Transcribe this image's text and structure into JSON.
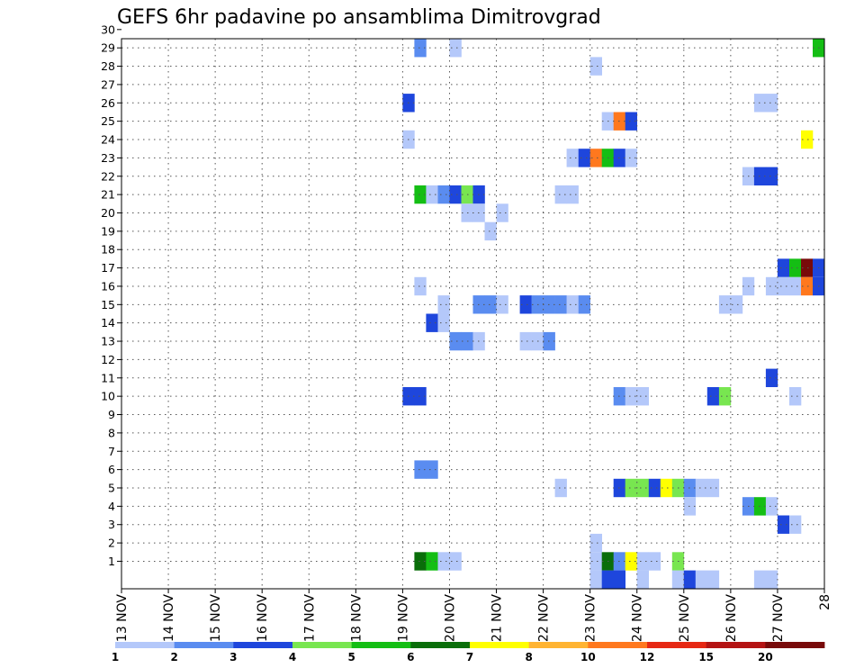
{
  "chart_data": {
    "type": "heatmap",
    "title": "GEFS 6hr padavine po ansamblima Dimitrovgrad",
    "y_ticks": [
      1,
      2,
      3,
      4,
      5,
      6,
      7,
      8,
      9,
      10,
      11,
      12,
      13,
      14,
      15,
      16,
      17,
      18,
      19,
      20,
      21,
      22,
      23,
      24,
      25,
      26,
      27,
      28,
      29,
      30
    ],
    "ylim": [
      0,
      30
    ],
    "x_ticks": [
      "13 NOV",
      "14 NOV",
      "15 NOV",
      "16 NOV",
      "17 NOV",
      "18 NOV",
      "19 NOV",
      "20 NOV",
      "21 NOV",
      "22 NOV",
      "23 NOV",
      "24 NOV",
      "25 NOV",
      "26 NOV",
      "27 NOV",
      "28"
    ],
    "xlim_days": [
      0,
      15
    ],
    "grid": true,
    "colorbar": {
      "labels": [
        "1",
        "2",
        "3",
        "4",
        "5",
        "6",
        "7",
        "8",
        "10",
        "12",
        "15",
        "20"
      ],
      "colors": [
        "#b4c8fa",
        "#5a8cf0",
        "#1e46dc",
        "#78e650",
        "#14be14",
        "#0a6e0a",
        "#ffff00",
        "#ffb432",
        "#ff781e",
        "#e62814",
        "#b41414",
        "#780a0a"
      ]
    },
    "cells": [
      {
        "member": 29,
        "day": 6.25,
        "level": 2
      },
      {
        "member": 29,
        "day": 7.0,
        "level": 1
      },
      {
        "member": 29,
        "day": 14.75,
        "level": 5
      },
      {
        "member": 28,
        "day": 10.0,
        "level": 1
      },
      {
        "member": 26,
        "day": 6.0,
        "level": 3
      },
      {
        "member": 26,
        "day": 13.5,
        "level": 1
      },
      {
        "member": 26,
        "day": 13.75,
        "level": 1
      },
      {
        "member": 25,
        "day": 10.25,
        "level": 1
      },
      {
        "member": 25,
        "day": 10.5,
        "level": 9
      },
      {
        "member": 25,
        "day": 10.75,
        "level": 3
      },
      {
        "member": 24,
        "day": 6.0,
        "level": 1
      },
      {
        "member": 24,
        "day": 14.5,
        "level": 7
      },
      {
        "member": 23,
        "day": 9.5,
        "level": 1
      },
      {
        "member": 23,
        "day": 9.75,
        "level": 3
      },
      {
        "member": 23,
        "day": 10.0,
        "level": 9
      },
      {
        "member": 23,
        "day": 10.25,
        "level": 5
      },
      {
        "member": 23,
        "day": 10.5,
        "level": 3
      },
      {
        "member": 23,
        "day": 10.75,
        "level": 1
      },
      {
        "member": 22,
        "day": 13.25,
        "level": 1
      },
      {
        "member": 22,
        "day": 13.5,
        "level": 3
      },
      {
        "member": 22,
        "day": 13.75,
        "level": 3
      },
      {
        "member": 21,
        "day": 6.25,
        "level": 5
      },
      {
        "member": 21,
        "day": 6.5,
        "level": 1
      },
      {
        "member": 21,
        "day": 6.75,
        "level": 2
      },
      {
        "member": 21,
        "day": 7.0,
        "level": 3
      },
      {
        "member": 21,
        "day": 7.25,
        "level": 4
      },
      {
        "member": 21,
        "day": 7.5,
        "level": 3
      },
      {
        "member": 21,
        "day": 9.25,
        "level": 1
      },
      {
        "member": 21,
        "day": 9.5,
        "level": 1
      },
      {
        "member": 20,
        "day": 7.25,
        "level": 1
      },
      {
        "member": 20,
        "day": 7.5,
        "level": 1
      },
      {
        "member": 20,
        "day": 8.0,
        "level": 1
      },
      {
        "member": 19,
        "day": 7.75,
        "level": 1
      },
      {
        "member": 17,
        "day": 14.0,
        "level": 3
      },
      {
        "member": 17,
        "day": 14.25,
        "level": 5
      },
      {
        "member": 17,
        "day": 14.5,
        "level": 12
      },
      {
        "member": 17,
        "day": 14.75,
        "level": 3
      },
      {
        "member": 16,
        "day": 6.25,
        "level": 1
      },
      {
        "member": 16,
        "day": 13.25,
        "level": 1
      },
      {
        "member": 16,
        "day": 13.75,
        "level": 1
      },
      {
        "member": 16,
        "day": 14.0,
        "level": 1
      },
      {
        "member": 16,
        "day": 14.25,
        "level": 1
      },
      {
        "member": 16,
        "day": 14.5,
        "level": 9
      },
      {
        "member": 16,
        "day": 14.75,
        "level": 3
      },
      {
        "member": 15,
        "day": 6.75,
        "level": 1
      },
      {
        "member": 15,
        "day": 7.5,
        "level": 2
      },
      {
        "member": 15,
        "day": 7.75,
        "level": 2
      },
      {
        "member": 15,
        "day": 8.0,
        "level": 1
      },
      {
        "member": 15,
        "day": 8.5,
        "level": 3
      },
      {
        "member": 15,
        "day": 8.75,
        "level": 2
      },
      {
        "member": 15,
        "day": 9.0,
        "level": 2
      },
      {
        "member": 15,
        "day": 9.25,
        "level": 2
      },
      {
        "member": 15,
        "day": 9.5,
        "level": 1
      },
      {
        "member": 15,
        "day": 9.75,
        "level": 2
      },
      {
        "member": 15,
        "day": 12.75,
        "level": 1
      },
      {
        "member": 15,
        "day": 13.0,
        "level": 1
      },
      {
        "member": 14,
        "day": 6.5,
        "level": 3
      },
      {
        "member": 14,
        "day": 6.75,
        "level": 1
      },
      {
        "member": 13,
        "day": 7.0,
        "level": 2
      },
      {
        "member": 13,
        "day": 7.25,
        "level": 2
      },
      {
        "member": 13,
        "day": 7.5,
        "level": 1
      },
      {
        "member": 13,
        "day": 8.5,
        "level": 1
      },
      {
        "member": 13,
        "day": 8.75,
        "level": 1
      },
      {
        "member": 13,
        "day": 9.0,
        "level": 2
      },
      {
        "member": 11,
        "day": 13.75,
        "level": 3
      },
      {
        "member": 10,
        "day": 6.0,
        "level": 3
      },
      {
        "member": 10,
        "day": 6.25,
        "level": 3
      },
      {
        "member": 10,
        "day": 10.5,
        "level": 2
      },
      {
        "member": 10,
        "day": 10.75,
        "level": 1
      },
      {
        "member": 10,
        "day": 11.0,
        "level": 1
      },
      {
        "member": 10,
        "day": 12.5,
        "level": 3
      },
      {
        "member": 10,
        "day": 12.75,
        "level": 4
      },
      {
        "member": 10,
        "day": 14.25,
        "level": 1
      },
      {
        "member": 6,
        "day": 6.25,
        "level": 2
      },
      {
        "member": 6,
        "day": 6.5,
        "level": 2
      },
      {
        "member": 5,
        "day": 9.25,
        "level": 1
      },
      {
        "member": 5,
        "day": 10.5,
        "level": 3
      },
      {
        "member": 5,
        "day": 10.75,
        "level": 4
      },
      {
        "member": 5,
        "day": 11.0,
        "level": 4
      },
      {
        "member": 5,
        "day": 11.25,
        "level": 3
      },
      {
        "member": 5,
        "day": 11.5,
        "level": 7
      },
      {
        "member": 5,
        "day": 11.75,
        "level": 4
      },
      {
        "member": 5,
        "day": 12.0,
        "level": 2
      },
      {
        "member": 5,
        "day": 12.25,
        "level": 1
      },
      {
        "member": 5,
        "day": 12.5,
        "level": 1
      },
      {
        "member": 4,
        "day": 12.0,
        "level": 1
      },
      {
        "member": 4,
        "day": 13.25,
        "level": 2
      },
      {
        "member": 4,
        "day": 13.5,
        "level": 5
      },
      {
        "member": 4,
        "day": 13.75,
        "level": 1
      },
      {
        "member": 3,
        "day": 14.0,
        "level": 3
      },
      {
        "member": 3,
        "day": 14.25,
        "level": 1
      },
      {
        "member": 2,
        "day": 10.0,
        "level": 1
      },
      {
        "member": 1,
        "day": 6.25,
        "level": 6
      },
      {
        "member": 1,
        "day": 6.5,
        "level": 5
      },
      {
        "member": 1,
        "day": 6.75,
        "level": 1
      },
      {
        "member": 1,
        "day": 7.0,
        "level": 1
      },
      {
        "member": 1,
        "day": 10.0,
        "level": 1
      },
      {
        "member": 1,
        "day": 10.25,
        "level": 6
      },
      {
        "member": 1,
        "day": 10.5,
        "level": 2
      },
      {
        "member": 1,
        "day": 10.75,
        "level": 7
      },
      {
        "member": 1,
        "day": 11.0,
        "level": 1
      },
      {
        "member": 1,
        "day": 11.25,
        "level": 1
      },
      {
        "member": 1,
        "day": 11.75,
        "level": 4
      },
      {
        "member": 0,
        "day": 10.0,
        "level": 1
      },
      {
        "member": 0,
        "day": 10.25,
        "level": 3
      },
      {
        "member": 0,
        "day": 10.5,
        "level": 3
      },
      {
        "member": 0,
        "day": 11.0,
        "level": 1
      },
      {
        "member": 0,
        "day": 11.75,
        "level": 1
      },
      {
        "member": 0,
        "day": 12.0,
        "level": 3
      },
      {
        "member": 0,
        "day": 12.25,
        "level": 1
      },
      {
        "member": 0,
        "day": 12.5,
        "level": 1
      },
      {
        "member": 0,
        "day": 13.5,
        "level": 1
      },
      {
        "member": 0,
        "day": 13.75,
        "level": 1
      }
    ]
  }
}
